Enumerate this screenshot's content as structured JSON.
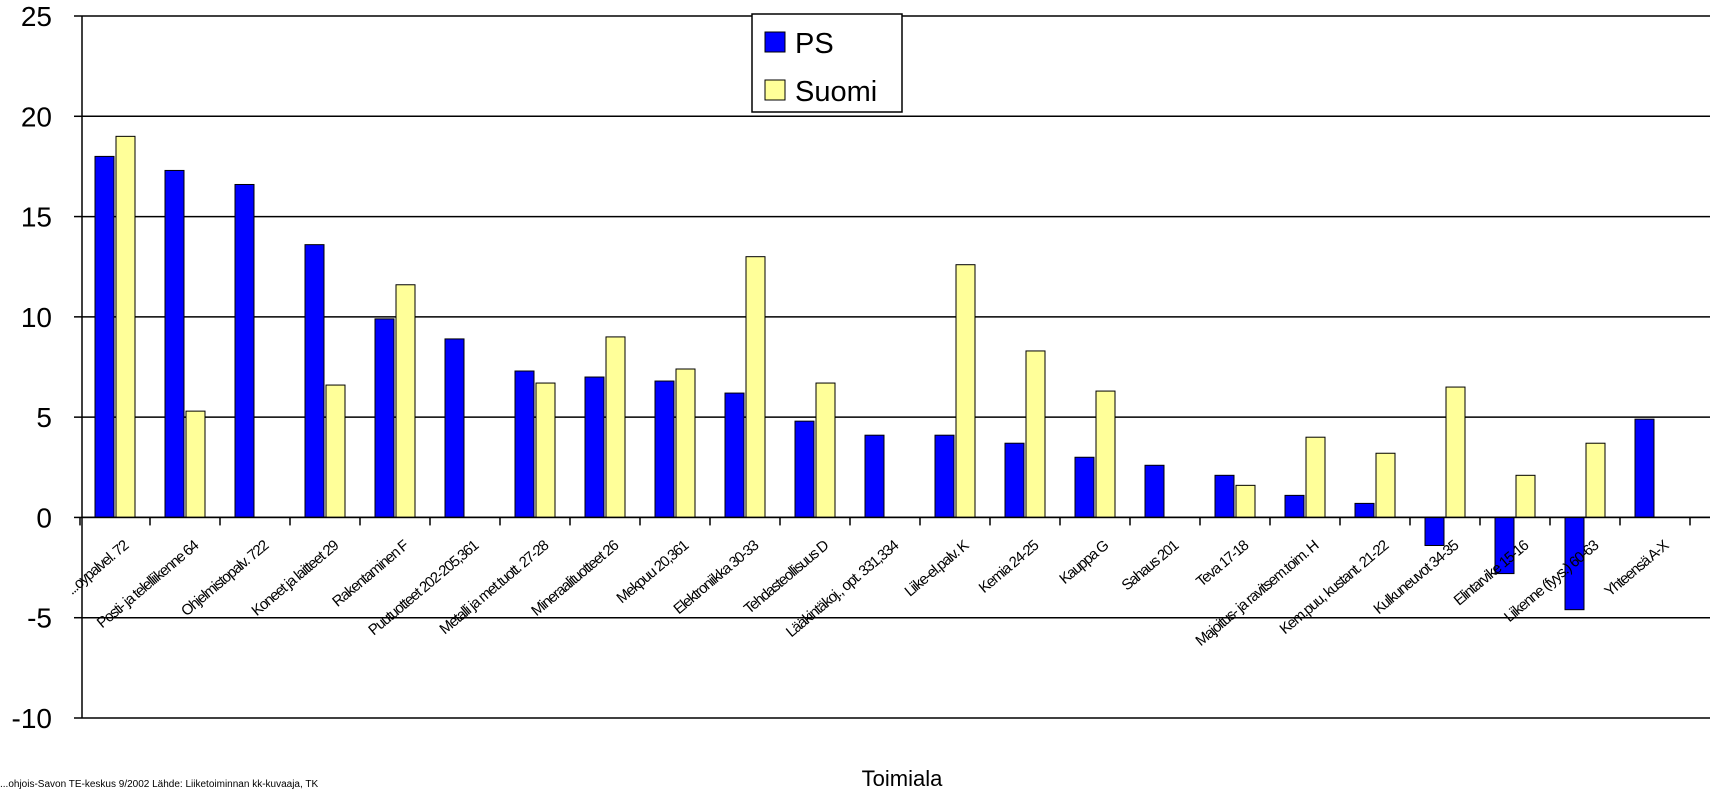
{
  "chart_data": {
    "type": "bar",
    "title": "",
    "xlabel": "Toimiala",
    "ylabel": "",
    "ylim": [
      -10,
      25
    ],
    "yticks": [
      -10,
      -5,
      0,
      5,
      10,
      15,
      20,
      25
    ],
    "grid": true,
    "legend_position": "top-center",
    "categories": [
      "...oypalvel. 72",
      "Posti- ja telelliikenne 64",
      "Ohjelmistopalv. 722",
      "Koneet ja laitteet 29",
      "Rakentaminen F",
      "Puutuotteet 202-205,361",
      "Metalli ja met.tuott. 27-28",
      "Mineraalituotteet 26",
      "Mekpuu 20,361",
      "Elektroniikka 30-33",
      "Tehdasteollisuus D",
      "Lääkintäkoj., opt. 331,334",
      "Liike-el.palv. K",
      "Kemia 24-25",
      "Kauppa G",
      "Sahaus 201",
      "Teva 17-18",
      "Majoitus- ja ravitsem.toim. H",
      "Kem.puu, kustant. 21-22",
      "Kulkuneuvot 34-35",
      "Elintarvike 15-16",
      "Liikenne (fyys.) 60-63",
      "Yhteensä A-X"
    ],
    "series": [
      {
        "name": "PS",
        "color": "#0000ff",
        "values": [
          18,
          17.3,
          16.6,
          13.6,
          9.9,
          8.9,
          7.3,
          7.0,
          6.8,
          6.2,
          4.8,
          4.1,
          4.1,
          3.7,
          3.0,
          2.6,
          2.1,
          1.1,
          0.7,
          -1.4,
          -2.8,
          -4.6,
          4.9
        ]
      },
      {
        "name": "Suomi",
        "color": "#ffff99",
        "values": [
          19,
          5.3,
          null,
          6.6,
          11.6,
          null,
          6.7,
          9.0,
          7.4,
          13.0,
          6.7,
          null,
          12.6,
          8.3,
          6.3,
          null,
          1.6,
          4.0,
          3.2,
          6.5,
          2.1,
          3.7,
          null
        ]
      }
    ],
    "footer": "...ohjois-Savon TE-keskus 9/2002    Lähde: Liiketoiminnan kk-kuvaaja, TK"
  }
}
